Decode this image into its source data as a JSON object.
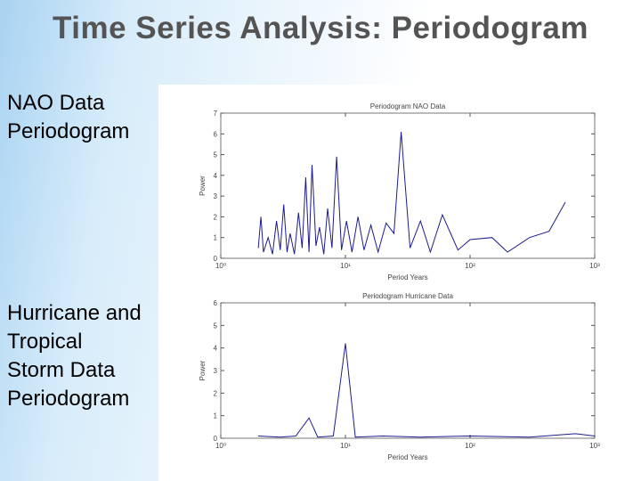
{
  "header": {
    "title": "Time Series Analysis: Periodogram"
  },
  "captions": [
    "NAO Data Periodogram",
    "Hurricane and Tropical Storm Data Periodogram"
  ],
  "chart_data": [
    {
      "type": "line",
      "title": "Periodogram NAO Data",
      "xlabel": "Period Years",
      "ylabel": "Power",
      "log_x": true,
      "color": "#1c1c8f",
      "xlim": [
        1,
        1000
      ],
      "xticks": [
        {
          "value": 1,
          "label": "10⁰"
        },
        {
          "value": 10,
          "label": "10¹"
        },
        {
          "value": 100,
          "label": "10²"
        },
        {
          "value": 1000,
          "label": "10³"
        }
      ],
      "ylim": [
        0,
        7
      ],
      "yticks": [
        0,
        1,
        2,
        3,
        4,
        5,
        6,
        7
      ],
      "x": [
        2,
        2.1,
        2.2,
        2.4,
        2.6,
        2.8,
        3,
        3.2,
        3.4,
        3.6,
        3.9,
        4.2,
        4.5,
        4.8,
        5.1,
        5.4,
        5.8,
        6.2,
        6.7,
        7.2,
        7.8,
        8.5,
        9.3,
        10.2,
        11.3,
        12.6,
        14.1,
        16,
        18.3,
        21.2,
        24.5,
        28,
        33,
        40,
        48,
        60,
        80,
        100,
        150,
        200,
        300,
        430,
        580
      ],
      "values": [
        0.5,
        2,
        0.3,
        1,
        0.2,
        1.8,
        0.4,
        2.6,
        0.3,
        1.2,
        0.2,
        2.2,
        0.5,
        3.9,
        0.3,
        4.5,
        0.6,
        1.5,
        0.2,
        2.4,
        0.5,
        4.9,
        0.4,
        1.8,
        0.3,
        2,
        0.4,
        1.6,
        0.3,
        1.7,
        1.2,
        6.1,
        0.5,
        1.8,
        0.3,
        2.1,
        0.4,
        0.9,
        1,
        0.3,
        1,
        1.3,
        2.7
      ]
    },
    {
      "type": "line",
      "title": "Periodogram Hurricane Data",
      "xlabel": "Period Years",
      "ylabel": "Power",
      "log_x": true,
      "color": "#1c1c8f",
      "xlim": [
        1,
        1000
      ],
      "xticks": [
        {
          "value": 1,
          "label": "10⁰"
        },
        {
          "value": 10,
          "label": "10¹"
        },
        {
          "value": 100,
          "label": "10²"
        },
        {
          "value": 1000,
          "label": "10³"
        }
      ],
      "ylim": [
        0,
        6
      ],
      "yticks": [
        0,
        1,
        2,
        3,
        4,
        5,
        6
      ],
      "x": [
        2,
        3,
        4,
        5.1,
        6,
        8,
        10,
        12,
        20,
        40,
        100,
        300,
        700,
        1000
      ],
      "values": [
        0.1,
        0.05,
        0.1,
        0.9,
        0.05,
        0.1,
        4.2,
        0.05,
        0.1,
        0.05,
        0.1,
        0.05,
        0.2,
        0.1
      ]
    }
  ]
}
